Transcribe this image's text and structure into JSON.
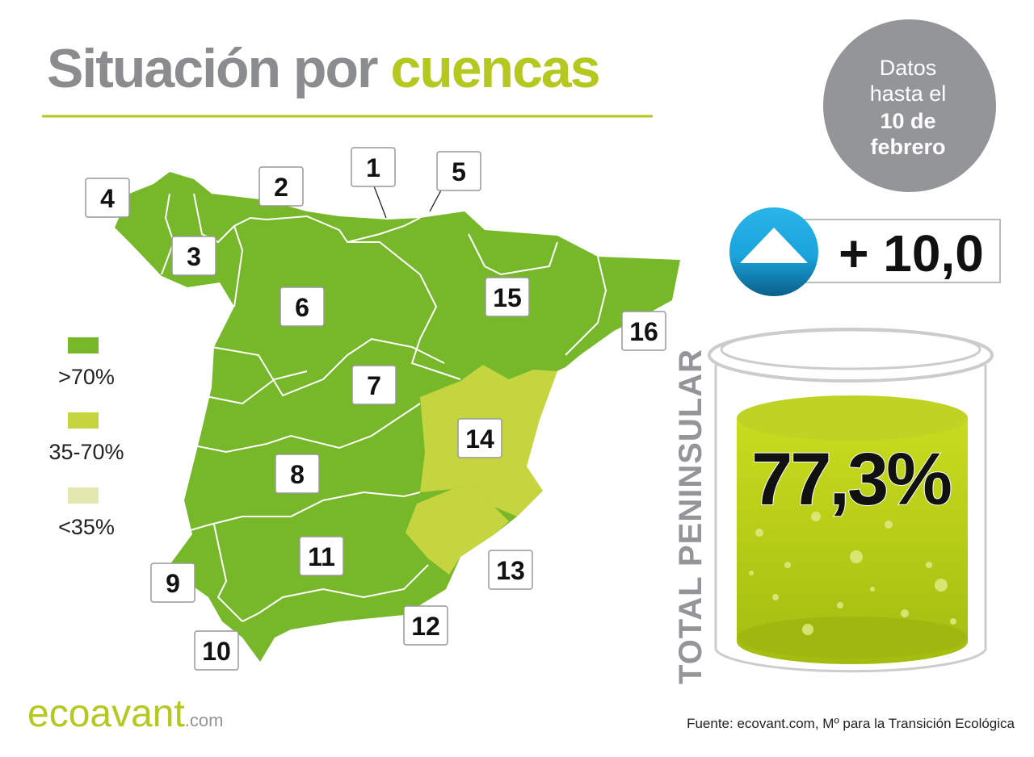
{
  "header": {
    "title_gray": "Situación por",
    "title_green": "cuencas"
  },
  "date_badge": {
    "line1": "Datos",
    "line2": "hasta el",
    "line3": "10 de",
    "line4": "febrero"
  },
  "change": {
    "text": "+ 10,0"
  },
  "legend": [
    {
      "label": ">70%",
      "color": "#76b82a"
    },
    {
      "label": "35-70%",
      "color": "#c5d53f"
    },
    {
      "label": "<35%",
      "color": "#e4e8b0"
    }
  ],
  "basins": [
    "1",
    "2",
    "3",
    "4",
    "5",
    "6",
    "7",
    "8",
    "9",
    "10",
    "11",
    "12",
    "13",
    "14",
    "15",
    "16"
  ],
  "total": {
    "label": "TOTAL PENINSULAR",
    "value": "77,3%"
  },
  "footer": {
    "brand": "ecoavant",
    "brand_suffix": ".com",
    "source": "Fuente: ecovant.com, Mº para la Transición Ecológica"
  }
}
